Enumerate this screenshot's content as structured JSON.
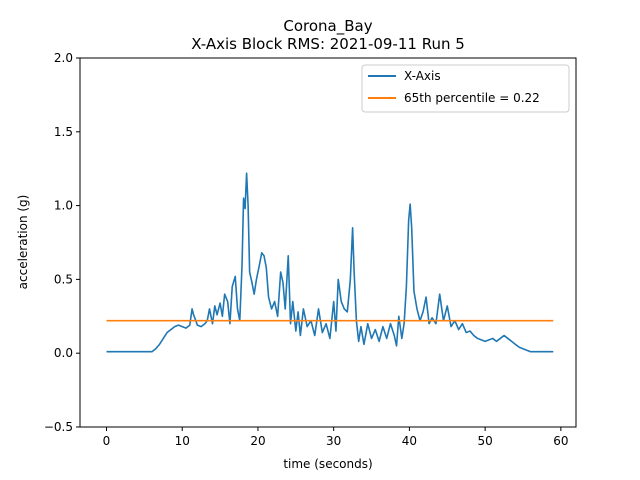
{
  "chart_data": {
    "type": "line",
    "title": "Corona_Bay",
    "subtitle": "X-Axis Block RMS: 2021-09-11 Run 5",
    "xlabel": "time (seconds)",
    "ylabel": "acceleration (g)",
    "xlim": [
      -3.5,
      62
    ],
    "ylim": [
      -0.5,
      2.0
    ],
    "xticks": [
      0,
      10,
      20,
      30,
      40,
      50,
      60
    ],
    "xtick_labels": [
      "0",
      "10",
      "20",
      "30",
      "40",
      "50",
      "60"
    ],
    "yticks": [
      -0.5,
      0.0,
      0.5,
      1.0,
      1.5,
      2.0
    ],
    "ytick_labels": [
      "−0.5",
      "0.0",
      "0.5",
      "1.0",
      "1.5",
      "2.0"
    ],
    "grid": false,
    "legend_position": "top-right",
    "series": [
      {
        "name": "X-Axis",
        "color": "#1f77b4",
        "x": [
          0,
          2,
          4,
          6.0,
          6.5,
          7.0,
          7.5,
          8.0,
          8.5,
          9.0,
          9.5,
          10.0,
          10.5,
          11.0,
          11.3,
          11.5,
          11.8,
          12.0,
          12.5,
          13.0,
          13.3,
          13.6,
          14.0,
          14.3,
          14.6,
          15.0,
          15.3,
          15.6,
          16.0,
          16.3,
          16.6,
          17.0,
          17.3,
          17.6,
          17.9,
          18.1,
          18.3,
          18.5,
          18.7,
          18.9,
          19.2,
          19.5,
          19.8,
          20.2,
          20.5,
          20.8,
          21.1,
          21.4,
          21.8,
          22.2,
          22.6,
          23.0,
          23.3,
          23.6,
          24.0,
          24.3,
          24.6,
          25.0,
          25.3,
          25.6,
          26.0,
          26.5,
          27.0,
          27.5,
          28.0,
          28.5,
          29.0,
          29.5,
          30.0,
          30.3,
          30.6,
          31.0,
          31.4,
          31.8,
          32.2,
          32.5,
          32.7,
          33.0,
          33.3,
          33.6,
          34.0,
          34.5,
          35.0,
          35.5,
          36.0,
          36.5,
          37.0,
          37.5,
          38.0,
          38.3,
          38.6,
          39.0,
          39.3,
          39.6,
          39.9,
          40.1,
          40.3,
          40.6,
          41.0,
          41.4,
          41.8,
          42.2,
          42.6,
          43.0,
          43.5,
          44.0,
          44.5,
          45.0,
          45.5,
          46.0,
          46.5,
          47.0,
          47.5,
          48.0,
          48.5,
          49.0,
          49.5,
          50.0,
          50.5,
          51.0,
          51.5,
          52.0,
          52.5,
          53.0,
          53.5,
          54.0,
          54.5,
          55.0,
          56.0,
          57.0,
          58.0,
          59.0
        ],
        "y": [
          0.01,
          0.01,
          0.01,
          0.01,
          0.03,
          0.06,
          0.1,
          0.14,
          0.16,
          0.18,
          0.19,
          0.18,
          0.17,
          0.19,
          0.3,
          0.26,
          0.22,
          0.19,
          0.18,
          0.2,
          0.22,
          0.3,
          0.2,
          0.32,
          0.26,
          0.34,
          0.25,
          0.4,
          0.35,
          0.2,
          0.45,
          0.52,
          0.3,
          0.22,
          0.6,
          1.05,
          0.98,
          1.22,
          1.0,
          0.55,
          0.48,
          0.4,
          0.5,
          0.6,
          0.68,
          0.66,
          0.58,
          0.38,
          0.3,
          0.35,
          0.25,
          0.55,
          0.48,
          0.3,
          0.66,
          0.2,
          0.35,
          0.15,
          0.28,
          0.12,
          0.3,
          0.18,
          0.22,
          0.12,
          0.3,
          0.14,
          0.2,
          0.1,
          0.35,
          0.15,
          0.5,
          0.35,
          0.3,
          0.28,
          0.5,
          0.85,
          0.55,
          0.22,
          0.08,
          0.18,
          0.06,
          0.2,
          0.1,
          0.16,
          0.08,
          0.18,
          0.1,
          0.2,
          0.12,
          0.05,
          0.25,
          0.1,
          0.2,
          0.45,
          0.9,
          1.01,
          0.85,
          0.42,
          0.3,
          0.22,
          0.28,
          0.38,
          0.2,
          0.24,
          0.2,
          0.4,
          0.22,
          0.32,
          0.18,
          0.22,
          0.16,
          0.2,
          0.14,
          0.15,
          0.12,
          0.1,
          0.09,
          0.08,
          0.09,
          0.1,
          0.08,
          0.1,
          0.12,
          0.1,
          0.08,
          0.06,
          0.04,
          0.03,
          0.01,
          0.01,
          0.01,
          0.01
        ]
      },
      {
        "name": "65th percentile = 0.22",
        "color": "#ff7f0e",
        "x": [
          0,
          59
        ],
        "y": [
          0.22,
          0.22
        ]
      }
    ]
  }
}
